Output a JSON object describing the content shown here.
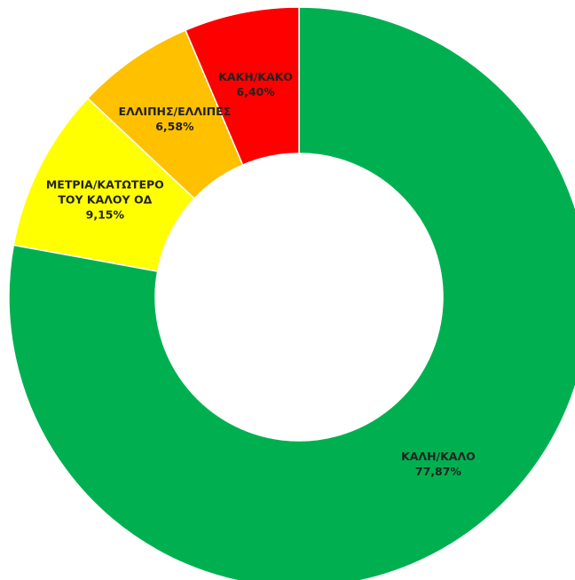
{
  "chart_data": {
    "type": "donut",
    "categories": [
      "ΚΑΛΗ/ΚΑΛΟ",
      "ΜΕΤΡΙΑ/ΚΑΤΩΤΕΡΟ ΤΟΥ ΚΑΛΟΥ ΟΔ",
      "ΕΛΛΙΠΗΣ/ΕΛΛΙΠΕΣ",
      "ΚΑΚΗ/ΚΑΚΟ"
    ],
    "values": [
      77.87,
      9.15,
      6.58,
      6.4
    ],
    "value_labels": [
      "77,87%",
      "9,15%",
      "6,58%",
      "6,40%"
    ],
    "colors": [
      "#00b050",
      "#ffff00",
      "#ffc000",
      "#ff0000"
    ]
  }
}
